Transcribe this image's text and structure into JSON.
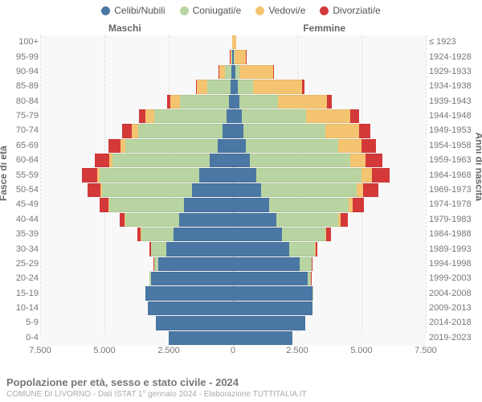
{
  "legend": [
    {
      "label": "Celibi/Nubili",
      "color": "#4a77a4"
    },
    {
      "label": "Coniugati/e",
      "color": "#b8d4a0"
    },
    {
      "label": "Vedovi/e",
      "color": "#f4c471"
    },
    {
      "label": "Divorziati/e",
      "color": "#d43939"
    }
  ],
  "headers": {
    "left": "Maschi",
    "right": "Femmine"
  },
  "axis_titles": {
    "left": "Fasce di età",
    "right": "Anni di nascita"
  },
  "x_axis": {
    "max": 7500,
    "ticks": [
      7500,
      5000,
      2500,
      0,
      2500,
      5000,
      7500
    ]
  },
  "footer": {
    "title": "Popolazione per età, sesso e stato civile - 2024",
    "sub": "COMUNE DI LIVORNO - Dati ISTAT 1° gennaio 2024 - Elaborazione TUTTITALIA.IT"
  },
  "segments": [
    "celibi",
    "coniugati",
    "vedovi",
    "divorziati"
  ],
  "rows": [
    {
      "age": "100+",
      "birth": "≤ 1923",
      "m": {
        "celibi": 5,
        "coniugati": 0,
        "vedovi": 20,
        "divorziati": 0
      },
      "f": {
        "celibi": 10,
        "coniugati": 0,
        "vedovi": 100,
        "divorziati": 0
      }
    },
    {
      "age": "95-99",
      "birth": "1924-1928",
      "m": {
        "celibi": 20,
        "coniugati": 30,
        "vedovi": 80,
        "divorziati": 5
      },
      "f": {
        "celibi": 40,
        "coniugati": 20,
        "vedovi": 450,
        "divorziati": 10
      }
    },
    {
      "age": "90-94",
      "birth": "1929-1933",
      "m": {
        "celibi": 50,
        "coniugati": 250,
        "vedovi": 250,
        "divorziati": 20
      },
      "f": {
        "celibi": 100,
        "coniugati": 150,
        "vedovi": 1300,
        "divorziati": 40
      }
    },
    {
      "age": "85-89",
      "birth": "1934-1938",
      "m": {
        "celibi": 100,
        "coniugati": 900,
        "vedovi": 400,
        "divorziati": 50
      },
      "f": {
        "celibi": 180,
        "coniugati": 600,
        "vedovi": 1900,
        "divorziati": 90
      }
    },
    {
      "age": "80-84",
      "birth": "1939-1943",
      "m": {
        "celibi": 150,
        "coniugati": 1900,
        "vedovi": 400,
        "divorziati": 120
      },
      "f": {
        "celibi": 250,
        "coniugati": 1500,
        "vedovi": 1900,
        "divorziati": 200
      }
    },
    {
      "age": "75-79",
      "birth": "1944-1948",
      "m": {
        "celibi": 250,
        "coniugati": 2800,
        "vedovi": 350,
        "divorziati": 250
      },
      "f": {
        "celibi": 350,
        "coniugati": 2500,
        "vedovi": 1700,
        "divorziati": 350
      }
    },
    {
      "age": "70-74",
      "birth": "1949-1953",
      "m": {
        "celibi": 400,
        "coniugati": 3300,
        "vedovi": 250,
        "divorziati": 350
      },
      "f": {
        "celibi": 400,
        "coniugati": 3200,
        "vedovi": 1300,
        "divorziati": 450
      }
    },
    {
      "age": "65-69",
      "birth": "1954-1958",
      "m": {
        "celibi": 600,
        "coniugati": 3600,
        "vedovi": 180,
        "divorziati": 450
      },
      "f": {
        "celibi": 500,
        "coniugati": 3600,
        "vedovi": 900,
        "divorziati": 550
      }
    },
    {
      "age": "60-64",
      "birth": "1959-1963",
      "m": {
        "celibi": 900,
        "coniugati": 3800,
        "vedovi": 120,
        "divorziati": 550
      },
      "f": {
        "celibi": 650,
        "coniugati": 3900,
        "vedovi": 600,
        "divorziati": 650
      }
    },
    {
      "age": "55-59",
      "birth": "1964-1968",
      "m": {
        "celibi": 1300,
        "coniugati": 3900,
        "vedovi": 80,
        "divorziati": 600
      },
      "f": {
        "celibi": 900,
        "coniugati": 4100,
        "vedovi": 400,
        "divorziati": 700
      }
    },
    {
      "age": "50-54",
      "birth": "1969-1973",
      "m": {
        "celibi": 1600,
        "coniugati": 3500,
        "vedovi": 50,
        "divorziati": 500
      },
      "f": {
        "celibi": 1100,
        "coniugati": 3700,
        "vedovi": 250,
        "divorziati": 600
      }
    },
    {
      "age": "45-49",
      "birth": "1974-1978",
      "m": {
        "celibi": 1900,
        "coniugati": 2900,
        "vedovi": 30,
        "divorziati": 350
      },
      "f": {
        "celibi": 1400,
        "coniugati": 3100,
        "vedovi": 150,
        "divorziati": 450
      }
    },
    {
      "age": "40-44",
      "birth": "1979-1983",
      "m": {
        "celibi": 2100,
        "coniugati": 2100,
        "vedovi": 15,
        "divorziati": 200
      },
      "f": {
        "celibi": 1700,
        "coniugati": 2400,
        "vedovi": 80,
        "divorziati": 300
      }
    },
    {
      "age": "35-39",
      "birth": "1984-1988",
      "m": {
        "celibi": 2300,
        "coniugati": 1300,
        "vedovi": 5,
        "divorziati": 100
      },
      "f": {
        "celibi": 1900,
        "coniugati": 1700,
        "vedovi": 40,
        "divorziati": 180
      }
    },
    {
      "age": "30-34",
      "birth": "1989-1993",
      "m": {
        "celibi": 2600,
        "coniugati": 600,
        "vedovi": 0,
        "divorziati": 40
      },
      "f": {
        "celibi": 2200,
        "coniugati": 1000,
        "vedovi": 15,
        "divorziati": 80
      }
    },
    {
      "age": "25-29",
      "birth": "1994-1998",
      "m": {
        "celibi": 2900,
        "coniugati": 200,
        "vedovi": 0,
        "divorziati": 10
      },
      "f": {
        "celibi": 2600,
        "coniugati": 450,
        "vedovi": 5,
        "divorziati": 25
      }
    },
    {
      "age": "20-24",
      "birth": "1999-2003",
      "m": {
        "celibi": 3200,
        "coniugati": 40,
        "vedovi": 0,
        "divorziati": 0
      },
      "f": {
        "celibi": 2900,
        "coniugati": 120,
        "vedovi": 0,
        "divorziati": 5
      }
    },
    {
      "age": "15-19",
      "birth": "2004-2008",
      "m": {
        "celibi": 3400,
        "coniugati": 0,
        "vedovi": 0,
        "divorziati": 0
      },
      "f": {
        "celibi": 3100,
        "coniugati": 10,
        "vedovi": 0,
        "divorziati": 0
      }
    },
    {
      "age": "10-14",
      "birth": "2009-2013",
      "m": {
        "celibi": 3300,
        "coniugati": 0,
        "vedovi": 0,
        "divorziati": 0
      },
      "f": {
        "celibi": 3100,
        "coniugati": 0,
        "vedovi": 0,
        "divorziati": 0
      }
    },
    {
      "age": "5-9",
      "birth": "2014-2018",
      "m": {
        "celibi": 3000,
        "coniugati": 0,
        "vedovi": 0,
        "divorziati": 0
      },
      "f": {
        "celibi": 2800,
        "coniugati": 0,
        "vedovi": 0,
        "divorziati": 0
      }
    },
    {
      "age": "0-4",
      "birth": "2019-2023",
      "m": {
        "celibi": 2500,
        "coniugati": 0,
        "vedovi": 0,
        "divorziati": 0
      },
      "f": {
        "celibi": 2300,
        "coniugati": 0,
        "vedovi": 0,
        "divorziati": 0
      }
    }
  ]
}
